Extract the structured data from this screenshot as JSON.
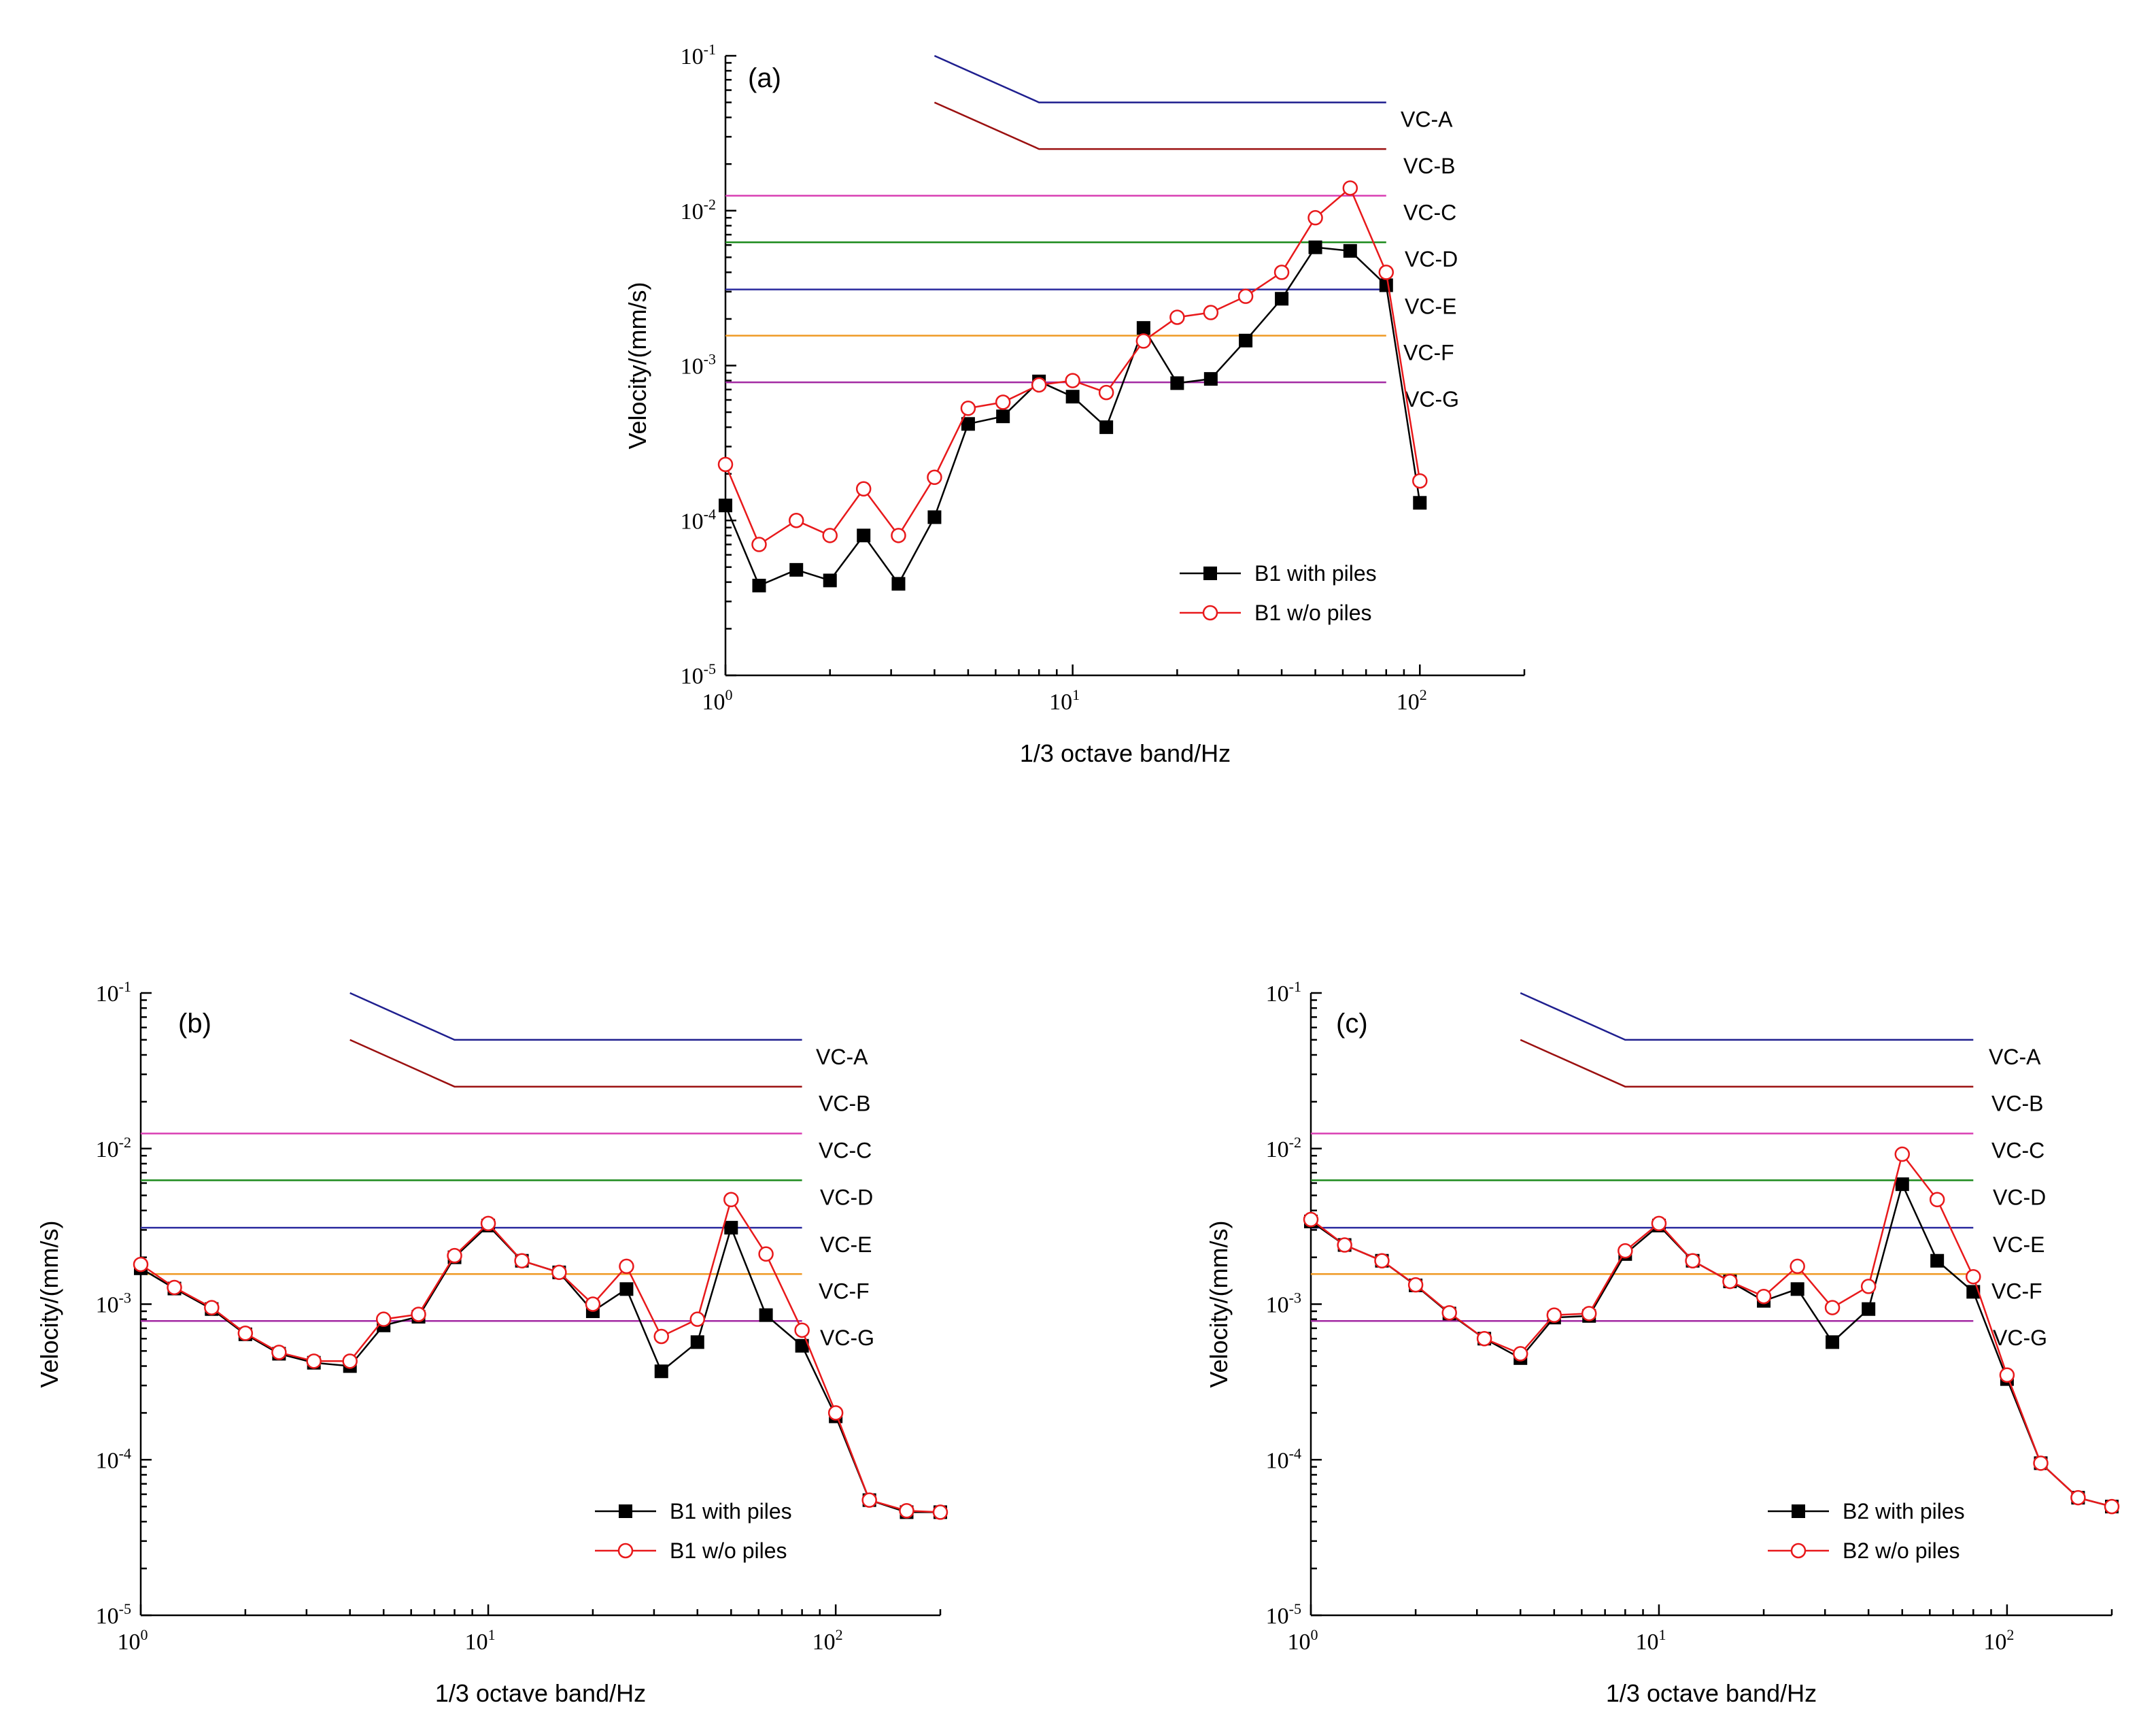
{
  "chart_data": [
    {
      "panel_label": "(a)",
      "type": "line",
      "xscale": "log",
      "yscale": "log",
      "xlim": [
        1,
        200
      ],
      "ylim": [
        1e-05,
        0.1
      ],
      "xlabel": "1/3 octave band/Hz",
      "ylabel": "Velocity/(mm/s)",
      "x_ticks": [
        {
          "base": "10",
          "exp": "0",
          "value": 1
        },
        {
          "base": "10",
          "exp": "1",
          "value": 10
        },
        {
          "base": "10",
          "exp": "2",
          "value": 100
        }
      ],
      "y_ticks": [
        {
          "base": "10",
          "exp": "-5",
          "value": 1e-05
        },
        {
          "base": "10",
          "exp": "-4",
          "value": 0.0001
        },
        {
          "base": "10",
          "exp": "-3",
          "value": 0.001
        },
        {
          "base": "10",
          "exp": "-2",
          "value": 0.01
        },
        {
          "base": "10",
          "exp": "-1",
          "value": 0.1
        }
      ],
      "criteria": [
        {
          "name": "VC-A",
          "color": "#1f1f8f",
          "points": [
            [
              4,
              0.1
            ],
            [
              8,
              0.05
            ],
            [
              80,
              0.05
            ]
          ]
        },
        {
          "name": "VC-B",
          "color": "#9b1010",
          "points": [
            [
              4,
              0.05
            ],
            [
              8,
              0.025
            ],
            [
              80,
              0.025
            ]
          ]
        },
        {
          "name": "VC-C",
          "color": "#d93fb3",
          "points": [
            [
              1,
              0.0125
            ],
            [
              80,
              0.0125
            ]
          ]
        },
        {
          "name": "VC-D",
          "color": "#1b8a1b",
          "points": [
            [
              1,
              0.00625
            ],
            [
              80,
              0.00625
            ]
          ]
        },
        {
          "name": "VC-E",
          "color": "#2b2b9f",
          "points": [
            [
              1,
              0.0031
            ],
            [
              80,
              0.0031
            ]
          ]
        },
        {
          "name": "VC-F",
          "color": "#ef9a25",
          "points": [
            [
              1,
              0.00156
            ],
            [
              80,
              0.00156
            ]
          ]
        },
        {
          "name": "VC-G",
          "color": "#a32aa3",
          "points": [
            [
              1,
              0.00078
            ],
            [
              80,
              0.00078
            ]
          ]
        }
      ],
      "series": [
        {
          "name": "B1 with piles",
          "color": "#000000",
          "marker": "square",
          "x": [
            1,
            1.25,
            1.6,
            2,
            2.5,
            3.15,
            4,
            5,
            6.3,
            8,
            10,
            12.5,
            16,
            20,
            25,
            31.5,
            40,
            50,
            63,
            80,
            100
          ],
          "values": [
            0.000125,
            3.8e-05,
            4.8e-05,
            4.1e-05,
            8e-05,
            3.9e-05,
            0.000105,
            0.00042,
            0.00047,
            0.00079,
            0.00063,
            0.0004,
            0.00175,
            0.00077,
            0.00082,
            0.00145,
            0.0027,
            0.0058,
            0.0055,
            0.0033,
            0.00013
          ]
        },
        {
          "name": "B1 w/o piles",
          "color": "#e8191b",
          "marker": "open-circle",
          "x": [
            1,
            1.25,
            1.6,
            2,
            2.5,
            3.15,
            4,
            5,
            6.3,
            8,
            10,
            12.5,
            16,
            20,
            25,
            31.5,
            40,
            50,
            63,
            80,
            100
          ],
          "values": [
            0.00023,
            7e-05,
            0.0001,
            8e-05,
            0.00016,
            8e-05,
            0.00019,
            0.00053,
            0.00058,
            0.00075,
            0.0008,
            0.00067,
            0.00144,
            0.00205,
            0.0022,
            0.0028,
            0.004,
            0.009,
            0.014,
            0.004,
            0.00018
          ]
        }
      ]
    },
    {
      "panel_label": "(b)",
      "type": "line",
      "xscale": "log",
      "yscale": "log",
      "xlim": [
        1,
        200
      ],
      "ylim": [
        1e-05,
        0.1
      ],
      "xlabel": "1/3 octave band/Hz",
      "ylabel": "Velocity/(mm/s)",
      "x_ticks": [
        {
          "base": "10",
          "exp": "0",
          "value": 1
        },
        {
          "base": "10",
          "exp": "1",
          "value": 10
        },
        {
          "base": "10",
          "exp": "2",
          "value": 100
        }
      ],
      "y_ticks": [
        {
          "base": "10",
          "exp": "-5",
          "value": 1e-05
        },
        {
          "base": "10",
          "exp": "-4",
          "value": 0.0001
        },
        {
          "base": "10",
          "exp": "-3",
          "value": 0.001
        },
        {
          "base": "10",
          "exp": "-2",
          "value": 0.01
        },
        {
          "base": "10",
          "exp": "-1",
          "value": 0.1
        }
      ],
      "criteria": [
        {
          "name": "VC-A",
          "color": "#1f1f8f",
          "points": [
            [
              4,
              0.1
            ],
            [
              8,
              0.05
            ],
            [
              80,
              0.05
            ]
          ]
        },
        {
          "name": "VC-B",
          "color": "#9b1010",
          "points": [
            [
              4,
              0.05
            ],
            [
              8,
              0.025
            ],
            [
              80,
              0.025
            ]
          ]
        },
        {
          "name": "VC-C",
          "color": "#d93fb3",
          "points": [
            [
              1,
              0.0125
            ],
            [
              80,
              0.0125
            ]
          ]
        },
        {
          "name": "VC-D",
          "color": "#1b8a1b",
          "points": [
            [
              1,
              0.00625
            ],
            [
              80,
              0.00625
            ]
          ]
        },
        {
          "name": "VC-E",
          "color": "#2b2b9f",
          "points": [
            [
              1,
              0.0031
            ],
            [
              80,
              0.0031
            ]
          ]
        },
        {
          "name": "VC-F",
          "color": "#ef9a25",
          "points": [
            [
              1,
              0.00156
            ],
            [
              80,
              0.00156
            ]
          ]
        },
        {
          "name": "VC-G",
          "color": "#a32aa3",
          "points": [
            [
              1,
              0.00078
            ],
            [
              80,
              0.00078
            ]
          ]
        }
      ],
      "series": [
        {
          "name": "B1 with piles",
          "color": "#000000",
          "marker": "square",
          "x": [
            1,
            1.25,
            1.6,
            2,
            2.5,
            3.15,
            4,
            5,
            6.3,
            8,
            10,
            12.5,
            16,
            20,
            25,
            31.5,
            40,
            50,
            63,
            80,
            100,
            125,
            160,
            200
          ],
          "values": [
            0.0017,
            0.00126,
            0.00093,
            0.00064,
            0.00048,
            0.00042,
            0.0004,
            0.00073,
            0.00083,
            0.002,
            0.0032,
            0.0019,
            0.0016,
            0.0009,
            0.00125,
            0.00037,
            0.00057,
            0.0031,
            0.00085,
            0.00054,
            0.00019,
            5.5e-05,
            4.6e-05,
            4.6e-05
          ]
        },
        {
          "name": "B1 w/o piles",
          "color": "#e8191b",
          "marker": "open-circle",
          "x": [
            1,
            1.25,
            1.6,
            2,
            2.5,
            3.15,
            4,
            5,
            6.3,
            8,
            10,
            12.5,
            16,
            20,
            25,
            31.5,
            40,
            50,
            63,
            80,
            100,
            125,
            160,
            200
          ],
          "values": [
            0.0018,
            0.00128,
            0.00095,
            0.00065,
            0.00049,
            0.00043,
            0.00043,
            0.0008,
            0.00086,
            0.00205,
            0.0033,
            0.0019,
            0.0016,
            0.001,
            0.00175,
            0.00062,
            0.0008,
            0.0047,
            0.0021,
            0.00068,
            0.0002,
            5.5e-05,
            4.7e-05,
            4.6e-05
          ]
        }
      ]
    },
    {
      "panel_label": "(c)",
      "type": "line",
      "xscale": "log",
      "yscale": "log",
      "xlim": [
        1,
        200
      ],
      "ylim": [
        1e-05,
        0.1
      ],
      "xlabel": "1/3 octave band/Hz",
      "ylabel": "Velocity/(mm/s)",
      "x_ticks": [
        {
          "base": "10",
          "exp": "0",
          "value": 1
        },
        {
          "base": "10",
          "exp": "1",
          "value": 10
        },
        {
          "base": "10",
          "exp": "2",
          "value": 100
        }
      ],
      "y_ticks": [
        {
          "base": "10",
          "exp": "-5",
          "value": 1e-05
        },
        {
          "base": "10",
          "exp": "-4",
          "value": 0.0001
        },
        {
          "base": "10",
          "exp": "-3",
          "value": 0.001
        },
        {
          "base": "10",
          "exp": "-2",
          "value": 0.01
        },
        {
          "base": "10",
          "exp": "-1",
          "value": 0.1
        }
      ],
      "criteria": [
        {
          "name": "VC-A",
          "color": "#1f1f8f",
          "points": [
            [
              4,
              0.1
            ],
            [
              8,
              0.05
            ],
            [
              80,
              0.05
            ]
          ]
        },
        {
          "name": "VC-B",
          "color": "#9b1010",
          "points": [
            [
              4,
              0.05
            ],
            [
              8,
              0.025
            ],
            [
              80,
              0.025
            ]
          ]
        },
        {
          "name": "VC-C",
          "color": "#d93fb3",
          "points": [
            [
              1,
              0.0125
            ],
            [
              80,
              0.0125
            ]
          ]
        },
        {
          "name": "VC-D",
          "color": "#1b8a1b",
          "points": [
            [
              1,
              0.00625
            ],
            [
              80,
              0.00625
            ]
          ]
        },
        {
          "name": "VC-E",
          "color": "#2b2b9f",
          "points": [
            [
              1,
              0.0031
            ],
            [
              80,
              0.0031
            ]
          ]
        },
        {
          "name": "VC-F",
          "color": "#ef9a25",
          "points": [
            [
              1,
              0.00156
            ],
            [
              80,
              0.00156
            ]
          ]
        },
        {
          "name": "VC-G",
          "color": "#a32aa3",
          "points": [
            [
              1,
              0.00078
            ],
            [
              80,
              0.00078
            ]
          ]
        }
      ],
      "series": [
        {
          "name": "B2 with piles",
          "color": "#000000",
          "marker": "square",
          "x": [
            1,
            1.25,
            1.6,
            2,
            2.5,
            3.15,
            4,
            5,
            6.3,
            8,
            10,
            12.5,
            16,
            20,
            25,
            31.5,
            40,
            50,
            63,
            80,
            100,
            125,
            160,
            200
          ],
          "values": [
            0.0034,
            0.0024,
            0.0019,
            0.00132,
            0.00087,
            0.0006,
            0.00045,
            0.00082,
            0.00084,
            0.0021,
            0.0032,
            0.0019,
            0.0014,
            0.00105,
            0.00125,
            0.00057,
            0.00093,
            0.0059,
            0.0019,
            0.0012,
            0.00033,
            9.5e-05,
            5.7e-05,
            5e-05
          ]
        },
        {
          "name": "B2 w/o piles",
          "color": "#e8191b",
          "marker": "open-circle",
          "x": [
            1,
            1.25,
            1.6,
            2,
            2.5,
            3.15,
            4,
            5,
            6.3,
            8,
            10,
            12.5,
            16,
            20,
            25,
            31.5,
            40,
            50,
            63,
            80,
            100,
            125,
            160,
            200
          ],
          "values": [
            0.0035,
            0.0024,
            0.0019,
            0.00133,
            0.00088,
            0.0006,
            0.00048,
            0.00085,
            0.00087,
            0.0022,
            0.0033,
            0.0019,
            0.0014,
            0.00112,
            0.00175,
            0.00095,
            0.0013,
            0.0092,
            0.0047,
            0.0015,
            0.00035,
            9.5e-05,
            5.7e-05,
            5e-05
          ]
        }
      ]
    }
  ]
}
